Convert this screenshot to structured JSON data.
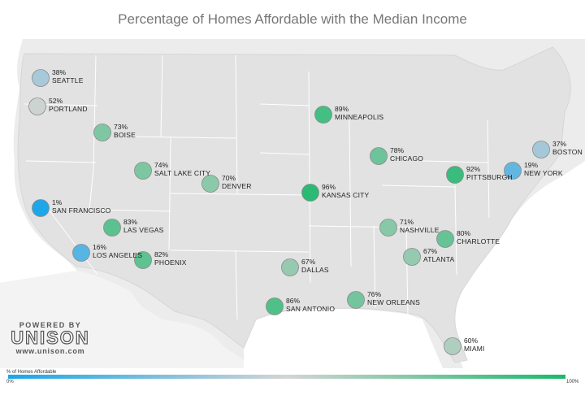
{
  "title": "Percentage of Homes Affordable with the Median Income",
  "colors": {
    "low": "#1aa6e8",
    "mid": "#d4d4d4",
    "high": "#1cb86c",
    "map_bg": "#ececec",
    "land": "#e4e4e4",
    "water": "#ffffff"
  },
  "brand": {
    "powered": "POWERED BY",
    "logo": "UNISON",
    "url": "www.unison.com"
  },
  "legend": {
    "title": "% of Homes Affordable",
    "min": "0%",
    "max": "100%"
  },
  "cities": [
    {
      "name": "SEATTLE",
      "pct": 38,
      "pct_label": "38%"
    },
    {
      "name": "PORTLAND",
      "pct": 52,
      "pct_label": "52%"
    },
    {
      "name": "BOISE",
      "pct": 73,
      "pct_label": "73%"
    },
    {
      "name": "SALT LAKE CITY",
      "pct": 74,
      "pct_label": "74%"
    },
    {
      "name": "DENVER",
      "pct": 70,
      "pct_label": "70%"
    },
    {
      "name": "SAN FRANCISCO",
      "pct": 1,
      "pct_label": "1%"
    },
    {
      "name": "LAS VEGAS",
      "pct": 83,
      "pct_label": "83%"
    },
    {
      "name": "LOS ANGELES",
      "pct": 16,
      "pct_label": "16%"
    },
    {
      "name": "PHOENIX",
      "pct": 82,
      "pct_label": "82%"
    },
    {
      "name": "MINNEAPOLIS",
      "pct": 89,
      "pct_label": "89%"
    },
    {
      "name": "KANSAS CITY",
      "pct": 96,
      "pct_label": "96%"
    },
    {
      "name": "CHICAGO",
      "pct": 78,
      "pct_label": "78%"
    },
    {
      "name": "DALLAS",
      "pct": 67,
      "pct_label": "67%"
    },
    {
      "name": "SAN ANTONIO",
      "pct": 86,
      "pct_label": "86%"
    },
    {
      "name": "NEW ORLEANS",
      "pct": 76,
      "pct_label": "76%"
    },
    {
      "name": "NASHVILLE",
      "pct": 71,
      "pct_label": "71%"
    },
    {
      "name": "ATLANTA",
      "pct": 67,
      "pct_label": "67%"
    },
    {
      "name": "CHARLOTTE",
      "pct": 80,
      "pct_label": "80%"
    },
    {
      "name": "PITTSBURGH",
      "pct": 92,
      "pct_label": "92%"
    },
    {
      "name": "NEW YORK",
      "pct": 19,
      "pct_label": "19%"
    },
    {
      "name": "BOSTON",
      "pct": 37,
      "pct_label": "37%"
    },
    {
      "name": "MIAMI",
      "pct": 60,
      "pct_label": "60%"
    }
  ]
}
